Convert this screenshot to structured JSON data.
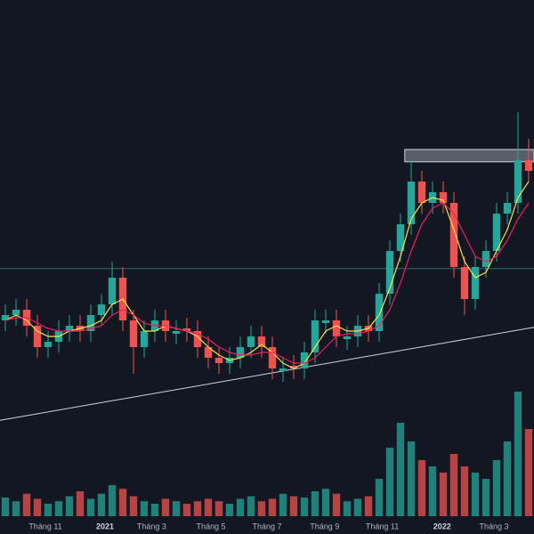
{
  "chart_data": {
    "type": "candlestick",
    "open": [
      40,
      41,
      42,
      39,
      35,
      36,
      38,
      39,
      38,
      41,
      43,
      48,
      40,
      35,
      38,
      40,
      37.5,
      38.5,
      38,
      35,
      33,
      32,
      33,
      35,
      37,
      35,
      30.5,
      31.5,
      31,
      34,
      39.5,
      40,
      36.5,
      37,
      39,
      38,
      45,
      53,
      58,
      66,
      62,
      64,
      62,
      50,
      44,
      50,
      53,
      60,
      62,
      70
    ],
    "high": [
      43,
      44,
      44,
      41,
      38,
      40,
      41,
      41,
      43,
      45,
      51,
      50,
      42,
      40,
      42,
      42,
      40,
      40.5,
      40,
      37,
      35,
      35,
      37,
      39,
      39,
      37,
      33,
      33.5,
      36,
      42,
      42,
      42,
      39,
      41,
      41,
      47,
      55,
      60,
      70,
      68,
      66,
      66,
      64,
      52,
      52,
      55,
      62,
      64,
      79,
      74
    ],
    "low": [
      38,
      39,
      37,
      33,
      33,
      34,
      36,
      36,
      36,
      39,
      41,
      38,
      30,
      33,
      36,
      36,
      35.5,
      36,
      33,
      31,
      30,
      30,
      31,
      33,
      33,
      29,
      28.5,
      29,
      29,
      32,
      37.5,
      35,
      34.5,
      35,
      36,
      36,
      43,
      51,
      56,
      60,
      60,
      60,
      48,
      41,
      42,
      48,
      51,
      58,
      60,
      66
    ],
    "close": [
      41,
      42,
      39,
      35,
      36,
      38,
      39,
      38,
      41,
      43,
      48,
      40,
      35,
      38,
      40,
      38,
      38,
      38,
      35,
      33,
      32,
      33,
      35,
      37,
      35,
      31,
      31,
      31,
      34,
      40,
      40,
      37,
      37,
      39,
      38,
      45,
      53,
      58,
      66,
      62,
      64,
      62,
      50,
      44,
      50,
      53,
      60,
      62,
      70,
      68
    ],
    "volume": [
      15,
      12,
      18,
      14,
      10,
      12,
      16,
      20,
      14,
      18,
      25,
      22,
      16,
      12,
      10,
      14,
      12,
      10,
      12,
      14,
      12,
      10,
      14,
      16,
      12,
      14,
      18,
      16,
      15,
      20,
      22,
      18,
      12,
      14,
      16,
      30,
      55,
      75,
      60,
      45,
      40,
      35,
      50,
      40,
      35,
      30,
      45,
      60,
      100,
      70
    ],
    "up_color": "#26a69a",
    "down_color": "#ef5350",
    "series": [
      {
        "color": "#f5e14b",
        "values": [
          40,
          41,
          40,
          38,
          37,
          37,
          38,
          38.5,
          39,
          40,
          43,
          44,
          41,
          38,
          38,
          39,
          38.5,
          38,
          37,
          35,
          33.5,
          32.5,
          33,
          34,
          35.5,
          34,
          32,
          31,
          32,
          35,
          38,
          39,
          38,
          38,
          38.5,
          41,
          46,
          52,
          59,
          62,
          63,
          62.5,
          57,
          51,
          48,
          49,
          53,
          57,
          63,
          66
        ]
      },
      {
        "color": "#e91e63",
        "values": [
          40,
          40.5,
          40.5,
          39.5,
          38.5,
          38,
          38,
          38,
          38.5,
          39,
          41,
          42,
          41,
          39.5,
          39,
          39,
          38.5,
          38,
          37.5,
          36.5,
          35,
          34,
          33.5,
          33.5,
          34,
          34,
          33,
          32,
          32,
          33,
          35,
          37,
          37.5,
          37.5,
          38,
          39,
          42,
          47,
          53,
          58,
          61,
          62,
          60,
          56,
          52,
          51,
          52,
          55,
          59,
          62
        ]
      }
    ],
    "ylim": [
      0,
      100
    ],
    "volume_ylim": [
      0,
      100
    ],
    "xlim": [
      -0.5,
      49.5
    ],
    "xticks": [
      {
        "value": 3.75,
        "label": "Tháng 11"
      },
      {
        "value": 9.33,
        "label": "2021"
      },
      {
        "value": 13.7,
        "label": "Tháng 3"
      },
      {
        "value": 19.25,
        "label": "Tháng 5"
      },
      {
        "value": 24.5,
        "label": "Tháng 7"
      },
      {
        "value": 29.9,
        "label": "Tháng 9"
      },
      {
        "value": 35.3,
        "label": "Tháng 11"
      },
      {
        "value": 40.9,
        "label": "2022"
      },
      {
        "value": 45.75,
        "label": "Tháng 3"
      }
    ],
    "hline": 49.7,
    "zone": [
      69.7,
      72
    ],
    "trendline": [
      21.3,
      38.7
    ]
  }
}
